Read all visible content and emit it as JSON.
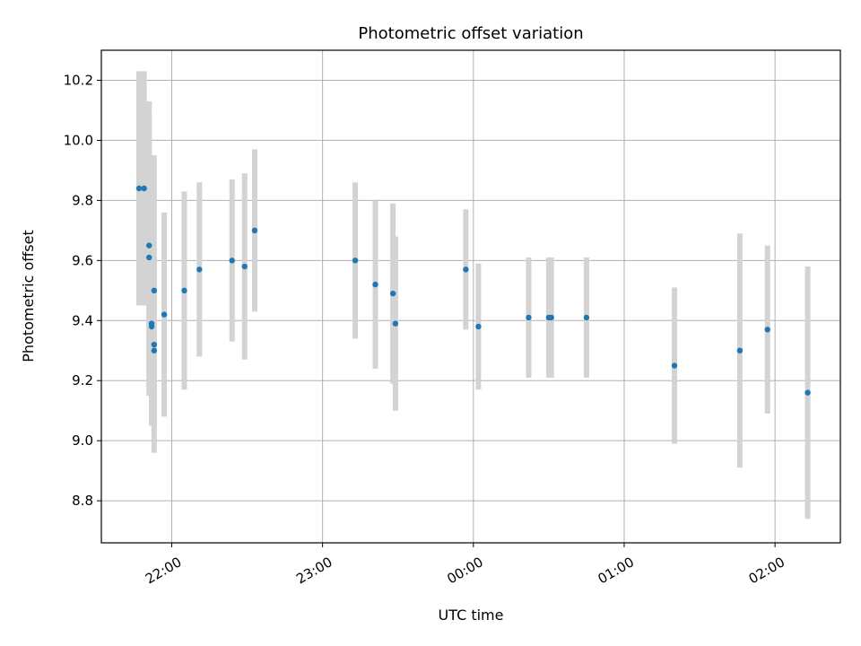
{
  "chart_data": {
    "type": "scatter",
    "title": "Photometric offset variation",
    "xlabel": "UTC time",
    "ylabel": "Photometric offset",
    "x_axis_type": "time",
    "xlim": [
      "21:32",
      "02:26"
    ],
    "ylim": [
      8.66,
      10.3
    ],
    "xticks": [
      {
        "time": "22:00",
        "label": "22:00"
      },
      {
        "time": "23:00",
        "label": "23:00"
      },
      {
        "time": "00:00",
        "label": "00:00"
      },
      {
        "time": "01:00",
        "label": "01:00"
      },
      {
        "time": "02:00",
        "label": "02:00"
      }
    ],
    "yticks": [
      {
        "value": 8.8,
        "label": "8.8"
      },
      {
        "value": 9.0,
        "label": "9.0"
      },
      {
        "value": 9.2,
        "label": "9.2"
      },
      {
        "value": 9.4,
        "label": "9.4"
      },
      {
        "value": 9.6,
        "label": "9.6"
      },
      {
        "value": 9.8,
        "label": "9.8"
      },
      {
        "value": 10.0,
        "label": "10.0"
      },
      {
        "value": 10.2,
        "label": "10.2"
      }
    ],
    "grid": true,
    "legend": false,
    "point_color": "#1f77b4",
    "errorbar_color": "#d3d3d3",
    "points": [
      {
        "x": "21:47",
        "y": 9.84,
        "err": 0.39
      },
      {
        "x": "21:49",
        "y": 9.84,
        "err": 0.39
      },
      {
        "x": "21:51",
        "y": 9.65,
        "err": 0.48
      },
      {
        "x": "21:51",
        "y": 9.61,
        "err": 0.46
      },
      {
        "x": "21:52",
        "y": 9.38,
        "err": 0.33
      },
      {
        "x": "21:52",
        "y": 9.39,
        "err": 0.34
      },
      {
        "x": "21:53",
        "y": 9.32,
        "err": 0.27
      },
      {
        "x": "21:53",
        "y": 9.5,
        "err": 0.45
      },
      {
        "x": "21:53",
        "y": 9.3,
        "err": 0.34
      },
      {
        "x": "21:57",
        "y": 9.42,
        "err": 0.34
      },
      {
        "x": "22:05",
        "y": 9.5,
        "err": 0.33
      },
      {
        "x": "22:11",
        "y": 9.57,
        "err": 0.29
      },
      {
        "x": "22:24",
        "y": 9.6,
        "err": 0.27
      },
      {
        "x": "22:29",
        "y": 9.58,
        "err": 0.31
      },
      {
        "x": "22:33",
        "y": 9.7,
        "err": 0.27
      },
      {
        "x": "23:13",
        "y": 9.6,
        "err": 0.26
      },
      {
        "x": "23:21",
        "y": 9.52,
        "err": 0.28
      },
      {
        "x": "23:28",
        "y": 9.49,
        "err": 0.3
      },
      {
        "x": "23:29",
        "y": 9.39,
        "err": 0.29
      },
      {
        "x": "23:57",
        "y": 9.57,
        "err": 0.2
      },
      {
        "x": "00:02",
        "y": 9.38,
        "err": 0.21
      },
      {
        "x": "00:22",
        "y": 9.41,
        "err": 0.2
      },
      {
        "x": "00:30",
        "y": 9.41,
        "err": 0.2
      },
      {
        "x": "00:31",
        "y": 9.41,
        "err": 0.2
      },
      {
        "x": "00:45",
        "y": 9.41,
        "err": 0.2
      },
      {
        "x": "01:20",
        "y": 9.25,
        "err": 0.26
      },
      {
        "x": "01:46",
        "y": 9.3,
        "err": 0.39
      },
      {
        "x": "01:57",
        "y": 9.37,
        "err": 0.28
      },
      {
        "x": "02:13",
        "y": 9.16,
        "err": 0.42
      }
    ]
  }
}
